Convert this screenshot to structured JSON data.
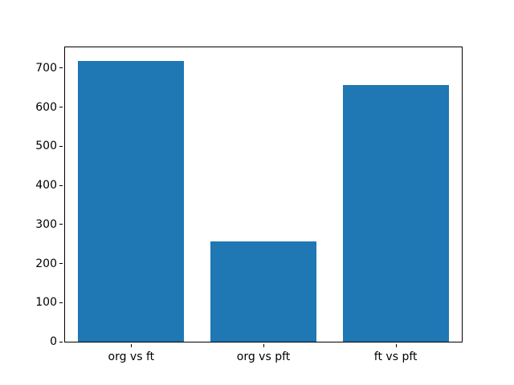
{
  "chart_data": {
    "type": "bar",
    "title": "",
    "xlabel": "",
    "ylabel": "",
    "categories": [
      "org vs ft",
      "org vs pft",
      "ft vs pft"
    ],
    "values": [
      717,
      257,
      656
    ],
    "yticks": [
      0,
      100,
      200,
      300,
      400,
      500,
      600,
      700
    ],
    "ylim": [
      0,
      752.85
    ],
    "bar_width_fraction": 0.8,
    "bar_color": "#1f77b4",
    "axis_color": "#000000",
    "background_color": "#ffffff",
    "grid": "off",
    "legend": "none"
  }
}
